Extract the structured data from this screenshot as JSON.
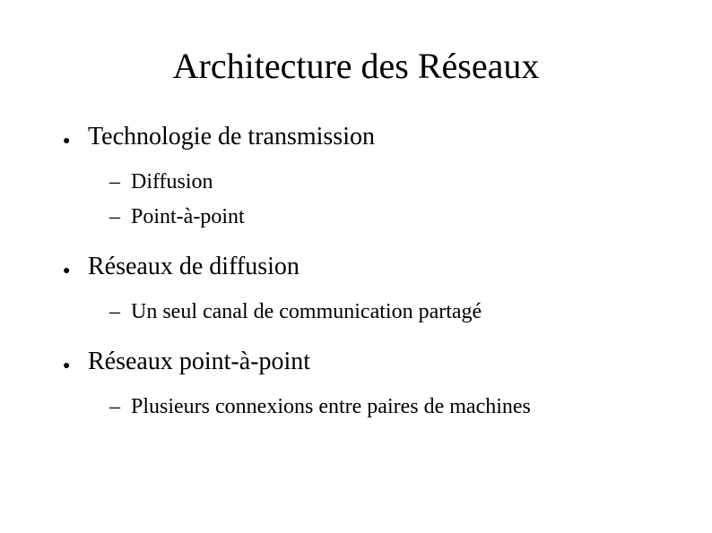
{
  "title": "Architecture des Réseaux",
  "colors": {
    "background": "#ffffff",
    "text": "#000000"
  },
  "typography": {
    "title_fontsize": 40,
    "level1_fontsize": 28,
    "level2_fontsize": 24,
    "font_family": "Times New Roman"
  },
  "bullets": {
    "level1_glyph": "●",
    "level2_glyph": "–"
  },
  "items": [
    {
      "text": "Technologie de transmission",
      "children": [
        {
          "text": "Diffusion"
        },
        {
          "text": "Point-à-point"
        }
      ]
    },
    {
      "text": "Réseaux de diffusion",
      "children": [
        {
          "text": "Un seul canal de communication partagé"
        }
      ]
    },
    {
      "text": "Réseaux point-à-point",
      "children": [
        {
          "text": "Plusieurs connexions entre paires de machines"
        }
      ]
    }
  ]
}
